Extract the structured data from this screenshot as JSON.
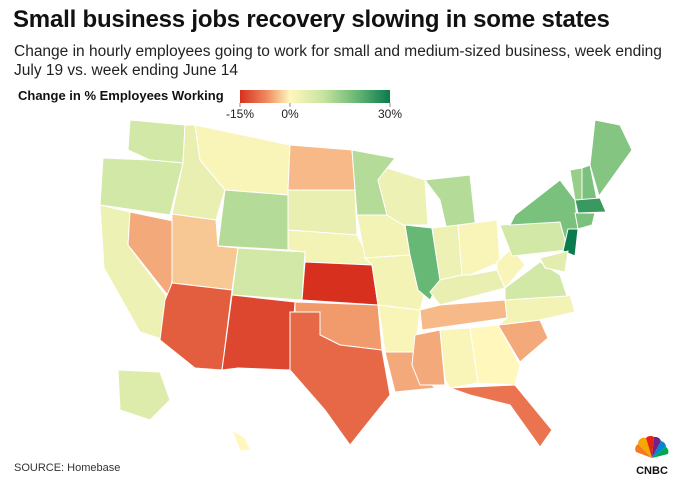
{
  "chart_data": {
    "type": "choropleth",
    "title": "Small business jobs recovery slowing in some states",
    "subtitle": "Change in hourly employees going to work for small and medium-sized business, week ending July 19 vs. week ending June 14",
    "legend_title": "Change in % Employees Working",
    "source": "SOURCE: Homebase",
    "logo": "CNBC",
    "colorscale": [
      [
        -15,
        "#d7301f"
      ],
      [
        -7,
        "#ef8a5f"
      ],
      [
        0,
        "#fff7bc"
      ],
      [
        10,
        "#c7e4a0"
      ],
      [
        20,
        "#66b874"
      ],
      [
        30,
        "#0b7a4d"
      ]
    ],
    "legend_range": [
      -15,
      30
    ],
    "legend_ticks": [
      {
        "value": -15,
        "label": "-15%"
      },
      {
        "value": 0,
        "label": "0%"
      },
      {
        "value": 30,
        "label": "30%"
      }
    ],
    "values": [
      8,
      8,
      3,
      -5,
      4,
      1,
      12,
      -3,
      -11,
      8,
      -13,
      -4,
      4,
      2,
      -15,
      -6,
      -10,
      12,
      2,
      2,
      1,
      -5,
      3,
      20,
      12,
      3,
      1,
      4,
      -4,
      -5,
      1,
      0,
      -9,
      -5,
      2,
      8,
      1,
      8,
      18,
      15,
      18,
      17,
      25,
      18,
      30,
      5,
      6,
      0
    ]
  }
}
